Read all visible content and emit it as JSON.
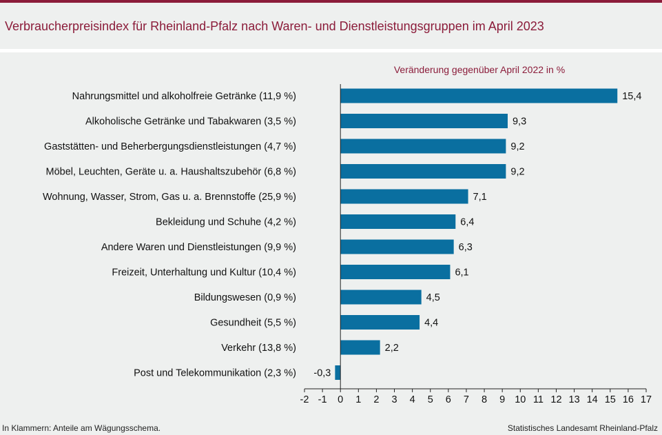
{
  "title": "Verbraucherpreisindex für Rheinland-Pfalz nach Waren- und Dienstleistungsgruppen im April 2023",
  "footnote": "In Klammern: Anteile am Wägungsschema.",
  "source": "Statistisches Landesamt Rheinland-Pfalz",
  "colors": {
    "accent": "#8b1c3a",
    "bar": "#0a6fa0",
    "background": "#eef0ef"
  },
  "chart_data": {
    "type": "bar",
    "orientation": "horizontal",
    "subtitle": "Veränderung  gegenüber  April 2022 in %",
    "categories": [
      "Nahrungsmittel und alkoholfreie Getränke (11,9 %)",
      "Alkoholische Getränke und Tabakwaren (3,5 %)",
      "Gaststätten- und Beherbergungsdienstleistungen (4,7 %)",
      "Möbel, Leuchten, Geräte u. a. Haushaltszubehör (6,8 %)",
      "Wohnung, Wasser, Strom, Gas u. a. Brennstoffe (25,9 %)",
      "Bekleidung und Schuhe (4,2 %)",
      "Andere Waren und Dienstleistungen (9,9 %)",
      "Freizeit, Unterhaltung und Kultur (10,4 %)",
      "Bildungswesen (0,9 %)",
      "Gesundheit (5,5 %)",
      "Verkehr (13,8 %)",
      "Post und Telekommunikation (2,3 %)"
    ],
    "values": [
      15.4,
      9.3,
      9.2,
      9.2,
      7.1,
      6.4,
      6.3,
      6.1,
      4.5,
      4.4,
      2.2,
      -0.3
    ],
    "value_labels": [
      "15,4",
      "9,3",
      "9,2",
      "9,2",
      "7,1",
      "6,4",
      "6,3",
      "6,1",
      "4,5",
      "4,4",
      "2,2",
      "-0,3"
    ],
    "xlim": [
      -2,
      17
    ],
    "xticks": [
      -2,
      -1,
      0,
      1,
      2,
      3,
      4,
      5,
      6,
      7,
      8,
      9,
      10,
      11,
      12,
      13,
      14,
      15,
      16,
      17
    ],
    "xtick_labels": [
      "-2",
      "-1",
      "0",
      "1",
      "2",
      "3",
      "4",
      "5",
      "6",
      "7",
      "8",
      "9",
      "10",
      "11",
      "12",
      "13",
      "14",
      "15",
      "16",
      "17"
    ],
    "grid": false,
    "legend": "none"
  }
}
